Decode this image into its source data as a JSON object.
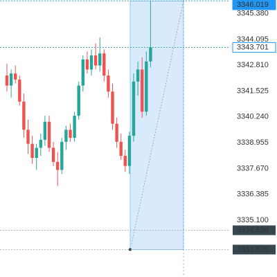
{
  "chart_data": {
    "type": "candlestick",
    "colors": {
      "up": "#26a69a",
      "down": "#ef5350",
      "highlight": "#2196f3",
      "range": "#37474f",
      "shade": "#cfe6fb"
    },
    "ylim": [
      3332.27,
      3346.06
    ],
    "yticks": [
      {
        "value": 3345.38,
        "label": "3345.380"
      },
      3344.095,
      {
        "value": 3342.81,
        "label": "3342.810"
      },
      3341.525,
      {
        "value": 3340.24,
        "label": "3340.240"
      },
      3338.955,
      {
        "value": 3337.67,
        "label": "3337.670"
      },
      3336.385,
      {
        "value": 3335.1,
        "label": "3335.100"
      }
    ],
    "highlight_levels": [
      3346.019,
      3343.701
    ],
    "range_levels": [
      3334.596,
      3333.635
    ],
    "candles": [
      {
        "open": 3342.3,
        "high": 3342.9,
        "low": 3341.5,
        "close": 3341.8
      },
      {
        "open": 3341.8,
        "high": 3342.6,
        "low": 3341.2,
        "close": 3342.4
      },
      {
        "open": 3342.4,
        "high": 3342.8,
        "low": 3341.9,
        "close": 3342.1
      },
      {
        "open": 3342.1,
        "high": 3342.3,
        "low": 3340.8,
        "close": 3341.0
      },
      {
        "open": 3341.0,
        "high": 3341.4,
        "low": 3339.2,
        "close": 3339.6
      },
      {
        "open": 3339.6,
        "high": 3340.1,
        "low": 3338.4,
        "close": 3338.9
      },
      {
        "open": 3338.9,
        "high": 3339.3,
        "low": 3337.9,
        "close": 3338.2
      },
      {
        "open": 3338.2,
        "high": 3338.9,
        "low": 3337.6,
        "close": 3338.7
      },
      {
        "open": 3338.7,
        "high": 3339.4,
        "low": 3338.3,
        "close": 3339.1
      },
      {
        "open": 3339.1,
        "high": 3340.3,
        "low": 3338.8,
        "close": 3340.0
      },
      {
        "open": 3340.0,
        "high": 3340.3,
        "low": 3338.5,
        "close": 3338.7
      },
      {
        "open": 3338.7,
        "high": 3339.0,
        "low": 3337.8,
        "close": 3338.0
      },
      {
        "open": 3338.0,
        "high": 3338.5,
        "low": 3336.8,
        "close": 3337.6
      },
      {
        "open": 3337.6,
        "high": 3339.2,
        "low": 3337.4,
        "close": 3339.0
      },
      {
        "open": 3339.0,
        "high": 3339.8,
        "low": 3338.6,
        "close": 3339.6
      },
      {
        "open": 3339.6,
        "high": 3339.9,
        "low": 3339.0,
        "close": 3339.2
      },
      {
        "open": 3339.2,
        "high": 3340.5,
        "low": 3339.0,
        "close": 3340.3
      },
      {
        "open": 3340.3,
        "high": 3342.0,
        "low": 3340.1,
        "close": 3341.8
      },
      {
        "open": 3341.8,
        "high": 3343.3,
        "low": 3341.5,
        "close": 3343.1
      },
      {
        "open": 3343.1,
        "high": 3343.5,
        "low": 3342.4,
        "close": 3342.6
      },
      {
        "open": 3342.6,
        "high": 3343.6,
        "low": 3342.3,
        "close": 3343.3
      },
      {
        "open": 3343.3,
        "high": 3343.9,
        "low": 3342.6,
        "close": 3342.8
      },
      {
        "open": 3342.8,
        "high": 3344.2,
        "low": 3342.5,
        "close": 3343.4
      },
      {
        "open": 3343.4,
        "high": 3343.6,
        "low": 3342.0,
        "close": 3342.3
      },
      {
        "open": 3342.3,
        "high": 3342.6,
        "low": 3341.2,
        "close": 3341.5
      },
      {
        "open": 3341.5,
        "high": 3341.9,
        "low": 3339.6,
        "close": 3339.9
      },
      {
        "open": 3339.9,
        "high": 3340.2,
        "low": 3338.7,
        "close": 3339.0
      },
      {
        "open": 3339.0,
        "high": 3339.4,
        "low": 3338.1,
        "close": 3338.3
      },
      {
        "open": 3338.3,
        "high": 3338.6,
        "low": 3337.5,
        "close": 3337.8
      },
      {
        "open": 3337.8,
        "high": 3339.5,
        "low": 3337.4,
        "close": 3339.3
      },
      {
        "open": 3339.3,
        "high": 3342.4,
        "low": 3339.0,
        "close": 3342.0
      },
      {
        "open": 3342.0,
        "high": 3343.0,
        "low": 3341.3,
        "close": 3342.6
      },
      {
        "open": 3342.6,
        "high": 3343.2,
        "low": 3340.2,
        "close": 3340.5
      },
      {
        "open": 3340.5,
        "high": 3343.5,
        "low": 3340.3,
        "close": 3343.0
      },
      {
        "open": 3343.0,
        "high": 3346.0,
        "low": 3342.7,
        "close": 3343.7
      }
    ]
  }
}
